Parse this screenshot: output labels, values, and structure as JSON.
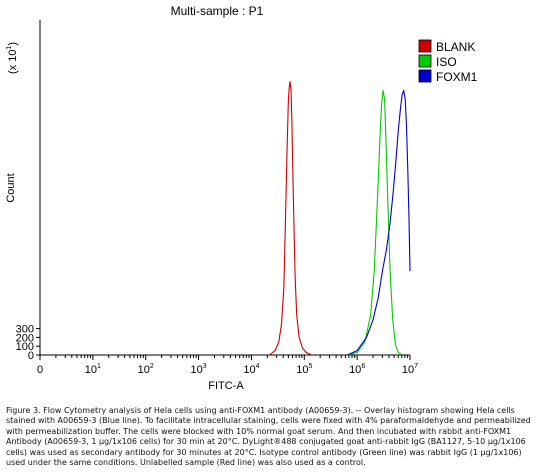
{
  "chart_data": {
    "type": "line",
    "title": "Multi-sample : P1",
    "xlabel": "FITC-A",
    "ylabel": "Count",
    "y_multiplier_label": "(x 10",
    "y_multiplier_exp": "1",
    "y_multiplier_close": ")",
    "xscale": "log",
    "xlim": [
      0,
      10000000
    ],
    "ylim": [
      0,
      380
    ],
    "x_ticks": [
      {
        "base": "0",
        "exp": ""
      },
      {
        "base": "10",
        "exp": "1"
      },
      {
        "base": "10",
        "exp": "2"
      },
      {
        "base": "10",
        "exp": "3"
      },
      {
        "base": "10",
        "exp": "4"
      },
      {
        "base": "10",
        "exp": "5"
      },
      {
        "base": "10",
        "exp": "6"
      },
      {
        "base": "10",
        "exp": "7"
      }
    ],
    "y_ticks": [
      "0",
      "100",
      "200",
      "300"
    ],
    "legend_position": "top-right",
    "series": [
      {
        "name": "BLANK",
        "color": "#cc0000",
        "x": [
          22000,
          28000,
          33000,
          37000,
          41000,
          44000,
          47000,
          50000,
          52000,
          54000,
          56000,
          58000,
          60000,
          63000,
          67000,
          72000,
          80000,
          92000,
          108000,
          125000,
          140000
        ],
        "y": [
          0,
          5,
          15,
          35,
          75,
          150,
          230,
          290,
          305,
          310,
          300,
          270,
          220,
          160,
          90,
          45,
          20,
          8,
          3,
          1,
          0
        ]
      },
      {
        "name": "ISO",
        "color": "#00cc00",
        "x": [
          700000,
          1000000,
          1400000,
          1800000,
          2100000,
          2400000,
          2700000,
          2900000,
          3100000,
          3300000,
          3500000,
          3800000,
          4200000,
          4700000,
          5300000,
          6000000,
          7000000
        ],
        "y": [
          0,
          3,
          15,
          45,
          95,
          170,
          245,
          285,
          300,
          290,
          245,
          175,
          95,
          40,
          12,
          3,
          0
        ]
      },
      {
        "name": "FOXM1",
        "color": "#0000cc",
        "x": [
          650000,
          1000000,
          1500000,
          2000000,
          2500000,
          3000000,
          3600000,
          4200000,
          4800000,
          5400000,
          6000000,
          6600000,
          7100000,
          7600000,
          8100000,
          8600000,
          9100000,
          9600000,
          10000000
        ],
        "y": [
          0,
          5,
          20,
          40,
          65,
          95,
          120,
          150,
          185,
          220,
          255,
          280,
          295,
          300,
          290,
          260,
          210,
          150,
          95
        ]
      }
    ]
  },
  "caption": "Figure 3. Flow Cytometry analysis of Hela cells using anti-FOXM1 antibody (A00659-3). -- Overlay histogram showing Hela cells stained with A00659-3 (Blue line). To facilitate intracellular staining, cells were fixed with 4% paraformaldehyde and permeabilized with permeabilization buffer. The cells were blocked with 10% normal goat serum. And then incubated with rabbit anti-FOXM1 Antibody (A00659-3, 1 μg/1x106 cells) for 30 min at 20°C. DyLight®488 conjugated goat anti-rabbit IgG (BA1127, 5-10 μg/1x106 cells) was used as secondary antibody for 30 minutes at 20°C. Isotype control antibody (Green line) was rabbit IgG (1 μg/1x106) used under the same conditions. Unlabelled sample (Red line) was also used as a control."
}
